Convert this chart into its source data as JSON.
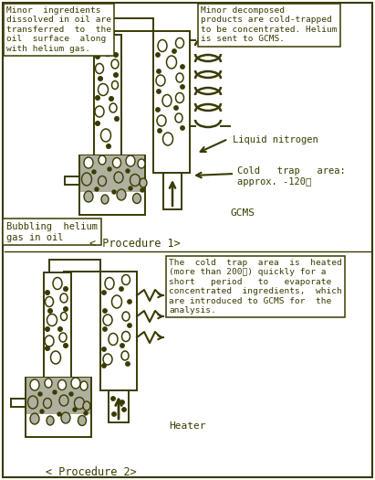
{
  "fig_width": 4.11,
  "fig_height": 5.25,
  "dpi": 100,
  "bg_color": "#ffffff",
  "dc": "#3a3a00",
  "gray_oil": "#b0b0a0",
  "box1_text": "Minor  ingredients\ndissolved in oil are\ntransferred  to  the\noil  surface  along\nwith helium gas.",
  "box2_text": "Minor decomposed\nproducts are cold-trapped\nto be concentrated. Helium\nis sent to GCMS.",
  "box3_text": "Bubbling  helium\ngas in oil",
  "liq_n_text": "Liquid nitrogen",
  "cold_trap_text": "Cold   trap   area:\napprox. -120℃",
  "gcms_text": "GCMS",
  "proc1_text": "< Procedure 1>",
  "box7_text": "The  cold  trap  area  is  heated\n(more than 200℃) quickly for a\nshort   period   to   evaporate\nconcentrated  ingredients,  which\nare introduced to GCMS for  the\nanalysis.",
  "heater_text": "Heater",
  "proc2_text": "< Procedure 2>"
}
